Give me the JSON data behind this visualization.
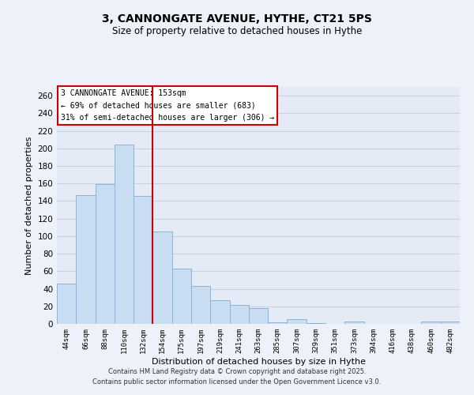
{
  "title": "3, CANNONGATE AVENUE, HYTHE, CT21 5PS",
  "subtitle": "Size of property relative to detached houses in Hythe",
  "xlabel": "Distribution of detached houses by size in Hythe",
  "ylabel": "Number of detached properties",
  "bar_labels": [
    "44sqm",
    "66sqm",
    "88sqm",
    "110sqm",
    "132sqm",
    "154sqm",
    "175sqm",
    "197sqm",
    "219sqm",
    "241sqm",
    "263sqm",
    "285sqm",
    "307sqm",
    "329sqm",
    "351sqm",
    "373sqm",
    "394sqm",
    "416sqm",
    "438sqm",
    "460sqm",
    "482sqm"
  ],
  "bar_values": [
    46,
    147,
    159,
    204,
    146,
    105,
    63,
    43,
    27,
    22,
    18,
    2,
    5,
    1,
    0,
    3,
    0,
    0,
    0,
    3,
    3
  ],
  "bar_color": "#c9ddf2",
  "bar_edge_color": "#8ab4d8",
  "vline_x_index": 4,
  "vline_color": "#cc0000",
  "ylim": [
    0,
    270
  ],
  "yticks": [
    0,
    20,
    40,
    60,
    80,
    100,
    120,
    140,
    160,
    180,
    200,
    220,
    240,
    260
  ],
  "annotation_title": "3 CANNONGATE AVENUE: 153sqm",
  "annotation_line1": "← 69% of detached houses are smaller (683)",
  "annotation_line2": "31% of semi-detached houses are larger (306) →",
  "annotation_box_color": "#ffffff",
  "annotation_box_edge": "#cc0000",
  "footer_line1": "Contains HM Land Registry data © Crown copyright and database right 2025.",
  "footer_line2": "Contains public sector information licensed under the Open Government Licence v3.0.",
  "bg_color": "#edf1fa",
  "plot_bg_color": "#e4eaf6",
  "grid_color": "#c8cfe0"
}
